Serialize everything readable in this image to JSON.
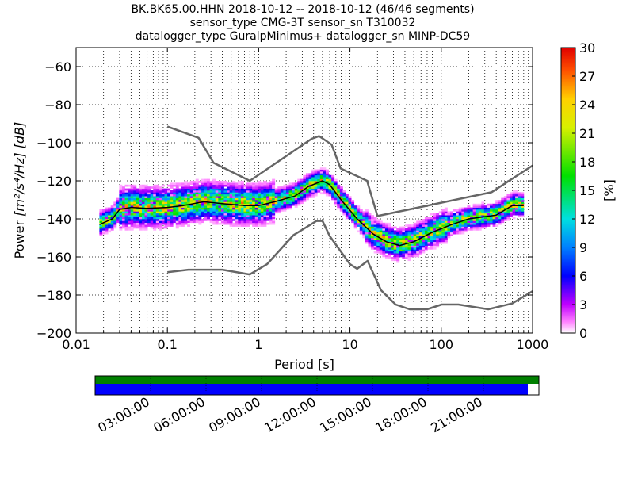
{
  "title_lines": [
    "BK.BK65.00.HHN   2018-10-12 -- 2018-10-12  (46/46 segments)",
    "sensor_type CMG-3T sensor_sn T310032",
    "datalogger_type GuralpMinimus+ datalogger_sn MINP-DC59"
  ],
  "chart_data": {
    "type": "heatmap",
    "xlabel": "Period [s]",
    "ylabel_prefix": "Power",
    "ylabel_units": "[m²/s⁴/Hz] [dB]",
    "x_scale": "log",
    "xlim": [
      0.01,
      1000
    ],
    "ylim": [
      -200,
      -50
    ],
    "x_ticks": [
      0.01,
      0.1,
      1,
      10,
      100,
      1000
    ],
    "x_tick_labels": [
      "0.01",
      "0.1",
      "1",
      "10",
      "100",
      "1000"
    ],
    "y_ticks": [
      -200,
      -180,
      -160,
      -140,
      -120,
      -100,
      -80,
      -60
    ],
    "y_tick_labels": [
      "−200",
      "−180",
      "−160",
      "−140",
      "−120",
      "−100",
      "−80",
      "−60"
    ],
    "grid": "dotted",
    "colorbar": {
      "label": "[%]",
      "range": [
        0,
        30
      ],
      "ticks": [
        0,
        3,
        6,
        9,
        12,
        15,
        18,
        21,
        24,
        27,
        30
      ],
      "tick_labels": [
        "0",
        "3",
        "6",
        "9",
        "12",
        "15",
        "18",
        "21",
        "24",
        "27",
        "30"
      ]
    },
    "mode_curve": [
      [
        0.018,
        -143
      ],
      [
        0.025,
        -140
      ],
      [
        0.03,
        -135
      ],
      [
        0.04,
        -134
      ],
      [
        0.06,
        -134.5
      ],
      [
        0.1,
        -134
      ],
      [
        0.15,
        -133
      ],
      [
        0.25,
        -131
      ],
      [
        0.4,
        -132
      ],
      [
        0.7,
        -133
      ],
      [
        1.0,
        -133
      ],
      [
        1.5,
        -131
      ],
      [
        2.5,
        -128
      ],
      [
        3.5,
        -123
      ],
      [
        5.0,
        -120
      ],
      [
        6.0,
        -122
      ],
      [
        8.0,
        -130
      ],
      [
        12.0,
        -140
      ],
      [
        18.0,
        -148
      ],
      [
        25.0,
        -152
      ],
      [
        35.0,
        -154
      ],
      [
        50.0,
        -152
      ],
      [
        80.0,
        -147
      ],
      [
        130.0,
        -143
      ],
      [
        200.0,
        -140
      ],
      [
        400.0,
        -138
      ],
      [
        600.0,
        -133
      ],
      [
        800.0,
        -133
      ]
    ],
    "nhnm": [
      [
        0.1,
        -91.5
      ],
      [
        0.22,
        -97.4
      ],
      [
        0.32,
        -110.5
      ],
      [
        0.8,
        -120
      ],
      [
        3.8,
        -97.9
      ],
      [
        4.6,
        -96.5
      ],
      [
        6.3,
        -101
      ],
      [
        7.9,
        -113.5
      ],
      [
        15.4,
        -120
      ],
      [
        20.0,
        -138.5
      ],
      [
        354.8,
        -126
      ],
      [
        1000,
        -112
      ]
    ],
    "nlnm": [
      [
        0.1,
        -168
      ],
      [
        0.17,
        -166.7
      ],
      [
        0.4,
        -166.7
      ],
      [
        0.8,
        -169.2
      ],
      [
        1.24,
        -163.7
      ],
      [
        2.4,
        -148.6
      ],
      [
        4.3,
        -141.1
      ],
      [
        5.0,
        -141.1
      ],
      [
        6.0,
        -149
      ],
      [
        10.0,
        -163.8
      ],
      [
        12.0,
        -166.2
      ],
      [
        15.6,
        -162.1
      ],
      [
        21.9,
        -177.5
      ],
      [
        31.6,
        -185
      ],
      [
        45.0,
        -187.5
      ],
      [
        70.0,
        -187.5
      ],
      [
        101.0,
        -185
      ],
      [
        154.0,
        -185
      ],
      [
        328.0,
        -187.5
      ],
      [
        600.0,
        -184.4
      ],
      [
        1000.0,
        -178
      ]
    ],
    "coverage": {
      "ticks": [
        "03:00:00",
        "06:00:00",
        "09:00:00",
        "12:00:00",
        "15:00:00",
        "18:00:00",
        "21:00:00"
      ],
      "data_fraction": 0.975,
      "data_color": "#0000ff",
      "segment_color": "#008000"
    }
  }
}
